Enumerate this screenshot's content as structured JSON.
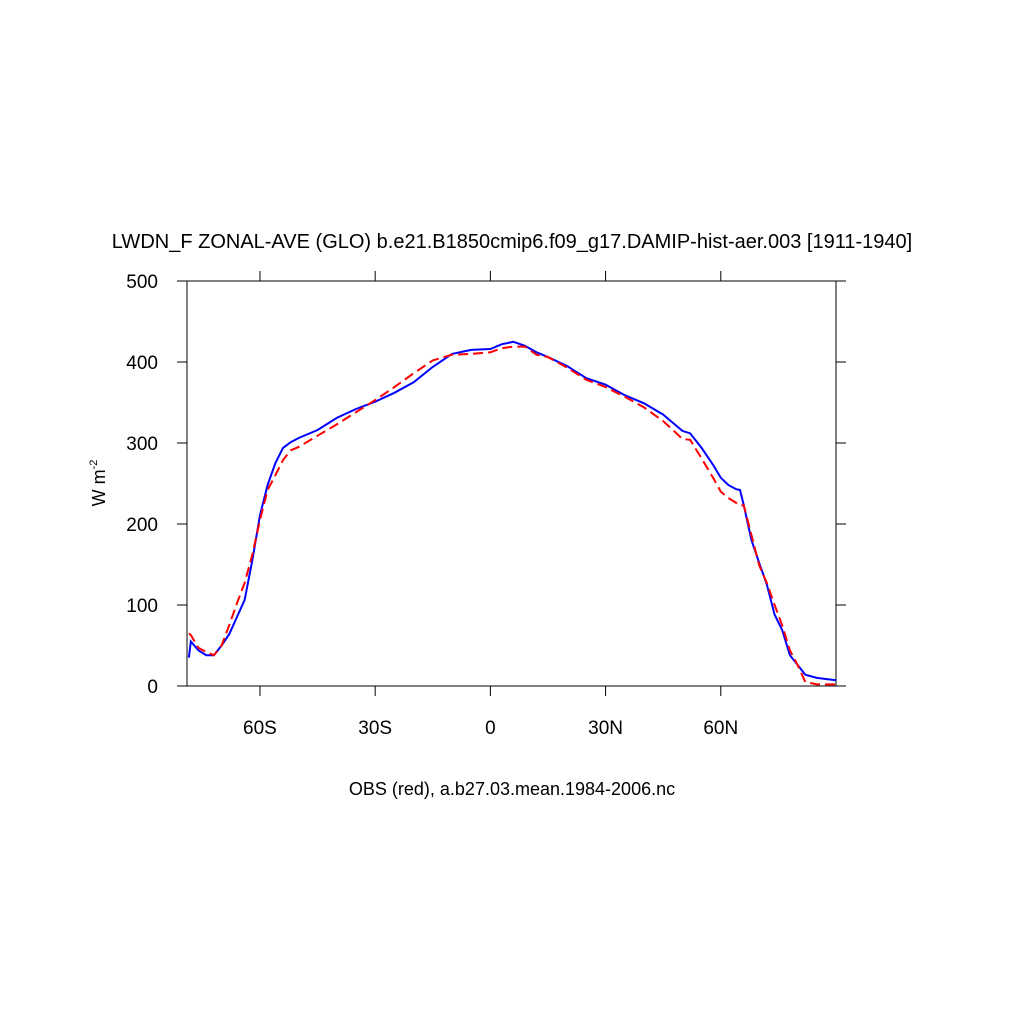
{
  "chart_data": {
    "type": "line",
    "title": "LWDN_F ZONAL-AVE (GLO) b.e21.B1850cmip6.f09_g17.DAMIP-hist-aer.003 [1911-1940]",
    "ylabel": {
      "text": "W m",
      "superscript": "-2"
    },
    "caption": "OBS (red), a.b27.03.mean.1984-2006.nc",
    "xlim": [
      -79,
      90
    ],
    "xticks": [
      {
        "value": -60,
        "label": "60S"
      },
      {
        "value": -30,
        "label": "30S"
      },
      0,
      {
        "value": 30,
        "label": "30N"
      },
      {
        "value": 60,
        "label": "60N"
      }
    ],
    "ylim": [
      0,
      500
    ],
    "yticks": [
      0,
      100,
      200,
      300,
      400,
      500
    ],
    "x": [
      -78.5,
      -78,
      -76,
      -74,
      -72,
      -70,
      -68,
      -66,
      -64,
      -62,
      -60,
      -58,
      -56,
      -54,
      -52,
      -50,
      -45,
      -40,
      -35,
      -30,
      -25,
      -20,
      -15,
      -10,
      -5,
      0,
      3,
      6,
      9,
      12,
      15,
      20,
      25,
      30,
      35,
      40,
      45,
      48,
      50,
      52,
      55,
      58,
      60,
      62,
      64,
      65,
      66,
      68,
      70,
      72,
      74,
      76,
      78,
      80,
      82,
      85,
      90
    ],
    "series": [
      {
        "color": "#0000ff",
        "dashed": false,
        "values": [
          35,
          55,
          44,
          38,
          38,
          50,
          64,
          85,
          106,
          155,
          211,
          248,
          275,
          294,
          301,
          306,
          316,
          331,
          342,
          351,
          362,
          375,
          394,
          410,
          415,
          416,
          422,
          425,
          420,
          412,
          406,
          395,
          380,
          372,
          359,
          349,
          335,
          323,
          315,
          312,
          294,
          273,
          257,
          248,
          243,
          242,
          223,
          180,
          152,
          125,
          88,
          69,
          38,
          26,
          14,
          10,
          7
        ]
      },
      {
        "color": "#ff0000",
        "dashed": true,
        "values": [
          65,
          63,
          47,
          42,
          38,
          50,
          75,
          102,
          127,
          162,
          205,
          242,
          260,
          279,
          291,
          295,
          309,
          323,
          338,
          353,
          369,
          386,
          402,
          409,
          410,
          412,
          417,
          419,
          419,
          409,
          406,
          393,
          378,
          369,
          357,
          344,
          327,
          314,
          305,
          304,
          281,
          257,
          240,
          232,
          226,
          223,
          223,
          186,
          149,
          127,
          100,
          75,
          44,
          26,
          5,
          2,
          2
        ]
      }
    ]
  }
}
